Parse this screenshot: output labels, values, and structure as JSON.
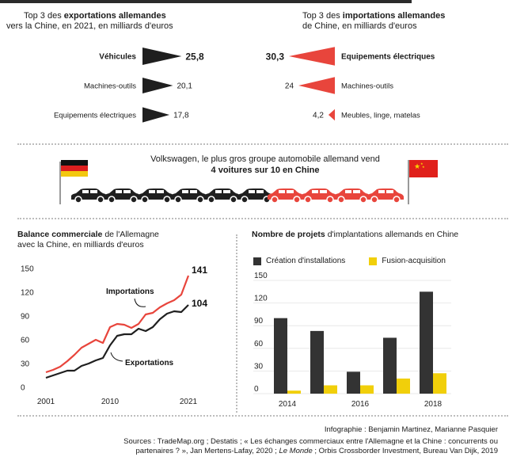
{
  "colors": {
    "black": "#1f1f1f",
    "red": "#e8453c",
    "yellow": "#f1cf0a",
    "dark_bar": "#333333"
  },
  "exports_panel": {
    "caption_pre": "Top 3 des ",
    "caption_bold": "exportations allemandes",
    "caption_line2": "vers la Chine, en 2021, en milliards d'euros"
  },
  "imports_panel": {
    "caption_pre": "Top 3 des ",
    "caption_bold": "importations allemandes",
    "caption_line2": "de  Chine, en milliards d'euros"
  },
  "cars_section": {
    "line1": "Volkswagen, le plus gros groupe automobile allemand vend",
    "line2": "4 voitures sur 10 en Chine",
    "black_cars": 6,
    "red_cars": 4
  },
  "balance_panel": {
    "caption_bold": "Balance commerciale",
    "caption_rest": " de l'Allemagne",
    "caption_line2": "avec la Chine, en milliards d'euros"
  },
  "projects_panel": {
    "caption_bold": "Nombre de projets",
    "caption_rest": " d'implantations allemands en Chine"
  },
  "footer": {
    "credit": "Infographie : Benjamin Martinez, Marianne Pasquier",
    "sources_line1": "Sources : TradeMap.org ; Destatis ; « Les échanges commerciaux entre l'Allemagne et la Chine : concurrents ou",
    "sources_line2a": "partenaires ? », Jan Mertens-Lafay, 2020 ; ",
    "sources_line2_it": "Le Monde",
    "sources_line2b": " ; Orbis Crossborder Investment, Bureau Van Dijk, 2019"
  },
  "chart_data": [
    {
      "type": "bar",
      "categories": [
        "Véhicules",
        "Machines-outils",
        "Equipements électriques"
      ],
      "values": [
        25.8,
        20.1,
        17.8
      ],
      "value_labels": [
        "25,8",
        "20,1",
        "17,8"
      ]
    },
    {
      "type": "bar",
      "categories": [
        "Equipements électriques",
        "Machines-outils",
        "Meubles, linge, matelas"
      ],
      "values": [
        30.3,
        24,
        4.2
      ],
      "value_labels": [
        "30,3",
        "24",
        "4,2"
      ]
    },
    {
      "type": "line",
      "x": [
        2001,
        2002,
        2003,
        2004,
        2005,
        2006,
        2007,
        2008,
        2009,
        2010,
        2011,
        2012,
        2013,
        2014,
        2015,
        2016,
        2017,
        2018,
        2019,
        2020,
        2021
      ],
      "series": [
        {
          "name": "Importations",
          "values": [
            19,
            22,
            26,
            33,
            41,
            50,
            55,
            60,
            56,
            76,
            80,
            79,
            75,
            80,
            92,
            94,
            101,
            106,
            110,
            117,
            141
          ]
        },
        {
          "name": "Exportations",
          "values": [
            12,
            15,
            18,
            21,
            21,
            27,
            30,
            34,
            37,
            53,
            65,
            67,
            67,
            74,
            71,
            76,
            86,
            93,
            96,
            95,
            104
          ]
        }
      ],
      "end_labels": [
        "141",
        "104"
      ],
      "yticks": [
        0,
        30,
        60,
        90,
        120,
        150
      ],
      "xticks": [
        "2001",
        "2010",
        "2021"
      ],
      "ylim": [
        0,
        150
      ]
    },
    {
      "type": "bar",
      "categories": [
        "2014",
        "2015",
        "2016",
        "2017",
        "2018"
      ],
      "series": [
        {
          "name": "Création d'installations",
          "values": [
            100,
            83,
            29,
            74,
            135
          ]
        },
        {
          "name": "Fusion-acquisition",
          "values": [
            4,
            11,
            11,
            20,
            27
          ]
        }
      ],
      "yticks": [
        0,
        30,
        60,
        90,
        120,
        150
      ],
      "xticks": [
        "2014",
        "2016",
        "2018"
      ],
      "ylim": [
        0,
        150
      ]
    }
  ]
}
